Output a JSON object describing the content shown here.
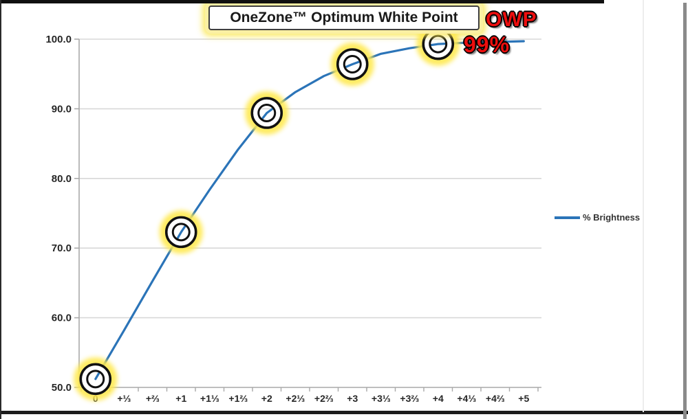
{
  "title": "OneZone™ Optimum White Point",
  "annotations": {
    "owp_label": "OWP",
    "owp_value": "99%"
  },
  "legend": {
    "label": "% Brightness"
  },
  "chart_data": {
    "type": "line",
    "title": "OneZone™ Optimum White Point",
    "categories": [
      "0",
      "+⅓",
      "+⅔",
      "+1",
      "+1⅓",
      "+1⅔",
      "+2",
      "+2⅓",
      "+2⅔",
      "+3",
      "+3⅓",
      "+3⅔",
      "+4",
      "+4⅓",
      "+4⅔",
      "+5"
    ],
    "series": [
      {
        "name": "% Brightness",
        "color": "#2b74b8",
        "values": [
          51.2,
          58.2,
          65.3,
          72.3,
          78.4,
          84.2,
          89.4,
          92.4,
          94.7,
          96.4,
          97.9,
          98.7,
          99.3,
          99.5,
          99.6,
          99.7
        ]
      }
    ],
    "xlabel": "",
    "ylabel": "",
    "ylim": [
      50,
      100
    ],
    "yticks": [
      50,
      60,
      70,
      80,
      90,
      100
    ],
    "ytick_labels": [
      "50.0",
      "60.0",
      "70.0",
      "80.0",
      "90.0",
      "100.0"
    ],
    "grid": true,
    "legend_position": "right",
    "highlighted_indices": [
      0,
      3,
      6,
      9,
      12
    ],
    "highlight_colors": {
      "glow": "#ffe94f",
      "ring": "#111111",
      "band": "#ffffff"
    },
    "owp_point": {
      "category": "+4",
      "value_label": "99%"
    }
  },
  "colors": {
    "line": "#2b74b8",
    "gridline": "#d8d8d8",
    "axis": "#a9a9a9",
    "callout_red": "#ed0e0e",
    "title_glow": "#fbf0a3"
  }
}
